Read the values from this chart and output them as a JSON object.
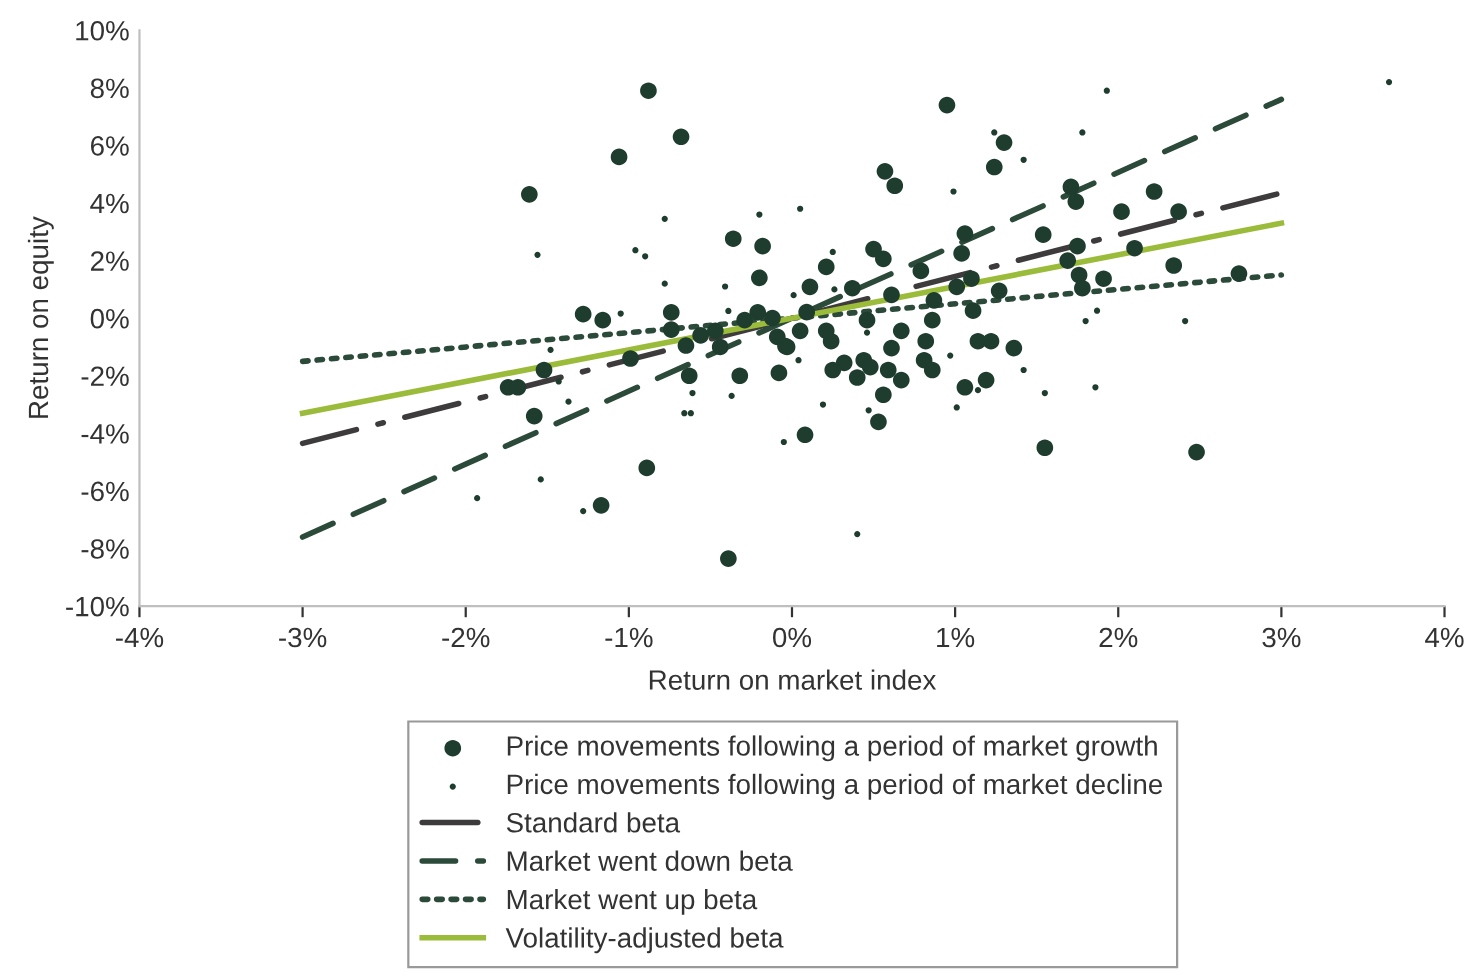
{
  "chart_data": {
    "type": "scatter",
    "xlabel": "Return on market index",
    "ylabel": "Return on equity",
    "xlim": [
      -4,
      4
    ],
    "ylim": [
      -10,
      10
    ],
    "xticks": [
      {
        "value": -4,
        "label": "-4%"
      },
      {
        "value": -3,
        "label": "-3%"
      },
      {
        "value": -2,
        "label": "-2%"
      },
      {
        "value": -1,
        "label": "-1%"
      },
      {
        "value": 0,
        "label": "0%"
      },
      {
        "value": 1,
        "label": "1%"
      },
      {
        "value": 2,
        "label": "2%"
      },
      {
        "value": 3,
        "label": "3%"
      },
      {
        "value": 4,
        "label": "4%"
      }
    ],
    "yticks": [
      {
        "value": -10,
        "label": "-10%"
      },
      {
        "value": -8,
        "label": "-8%"
      },
      {
        "value": -6,
        "label": "-6%"
      },
      {
        "value": -4,
        "label": "-4%"
      },
      {
        "value": -2,
        "label": "-2%"
      },
      {
        "value": 0,
        "label": "0%"
      },
      {
        "value": 2,
        "label": "2%"
      },
      {
        "value": 4,
        "label": "4%"
      },
      {
        "value": 6,
        "label": "6%"
      },
      {
        "value": 8,
        "label": "8%"
      },
      {
        "value": 10,
        "label": "10%"
      }
    ],
    "grid": false,
    "legend": "bottom",
    "series": [
      {
        "name": "Price movements following a period of market growth",
        "marker": "circle",
        "color": "#1e3d2e",
        "x": [
          -0.88,
          -0.68,
          -1.06,
          -1.61,
          -0.36,
          -0.18,
          -0.2,
          -1.28,
          -1.16,
          -0.74,
          -0.74,
          -0.21,
          -0.12,
          -0.47,
          -0.56,
          -0.44,
          -0.29,
          -0.09,
          -0.04,
          -0.08,
          -0.32,
          -0.63,
          -0.65,
          -0.99,
          -1.52,
          -1.74,
          -1.68,
          -1.58,
          -0.89,
          -1.17,
          -0.39,
          0.95,
          1.3,
          1.24,
          0.57,
          0.63,
          1.71,
          1.74,
          2.22,
          2.02,
          2.37,
          1.54,
          1.06,
          1.04,
          1.75,
          2.1,
          0.5,
          0.56,
          0.21,
          0.79,
          1.69,
          1.76,
          1.91,
          1.78,
          2.34,
          2.74,
          1.1,
          0.11,
          0.37,
          0.61,
          0.87,
          1.01,
          1.27,
          1.11,
          0.09,
          0.46,
          0.86,
          0.05,
          0.21,
          0.24,
          0.67,
          0.82,
          -0.03,
          0.61,
          1.14,
          1.22,
          1.36,
          0.32,
          0.25,
          0.44,
          0.48,
          0.4,
          0.59,
          0.67,
          0.81,
          0.86,
          0.56,
          0.53,
          1.06,
          1.19,
          0.08,
          1.55,
          2.48
        ],
        "values": [
          7.9,
          6.3,
          5.6,
          4.3,
          2.76,
          2.5,
          1.4,
          0.14,
          -0.07,
          0.2,
          -0.4,
          0.2,
          0,
          -0.44,
          -0.6,
          -1.0,
          -0.07,
          -0.65,
          -0.97,
          -1.9,
          -2.0,
          -2.0,
          -0.95,
          -1.4,
          -1.8,
          -2.4,
          -2.4,
          -3.4,
          -5.2,
          -6.5,
          -8.35,
          7.4,
          6.1,
          5.25,
          5.1,
          4.6,
          4.56,
          4.05,
          4.4,
          3.7,
          3.7,
          2.9,
          2.94,
          2.25,
          2.5,
          2.43,
          2.4,
          2.06,
          1.78,
          1.64,
          2.0,
          1.5,
          1.37,
          1.04,
          1.83,
          1.55,
          1.37,
          1.09,
          1.04,
          0.81,
          0.62,
          1.09,
          0.95,
          0.26,
          0.21,
          -0.07,
          -0.07,
          -0.44,
          -0.44,
          -0.8,
          -0.44,
          -0.8,
          -1.0,
          -1.04,
          -0.8,
          -0.8,
          -1.04,
          -1.55,
          -1.8,
          -1.46,
          -1.7,
          -2.06,
          -1.8,
          -2.15,
          -1.46,
          -1.8,
          -2.66,
          -3.6,
          -2.4,
          -2.15,
          -4.05,
          -4.5,
          -4.65
        ]
      },
      {
        "name": "Price movements following a period of market decline",
        "marker": "circle",
        "color": "#1e3d2e",
        "x": [
          -0.78,
          -1.56,
          -0.96,
          -0.9,
          -0.2,
          -0.78,
          -0.41,
          0.01,
          -0.39,
          -1.05,
          -1.48,
          -1.43,
          -1.37,
          -0.61,
          -0.66,
          -0.62,
          -0.37,
          -1.54,
          -1.93,
          -1.28,
          -0.05,
          3.66,
          1.93,
          1.24,
          1.78,
          1.42,
          0.99,
          0.05,
          0.25,
          0.26,
          1.87,
          1.8,
          0.04,
          0.97,
          1.42,
          1.55,
          1.86,
          2.41,
          0.19,
          0.47,
          1.01,
          1.14,
          0.4,
          0.46
        ],
        "values": [
          3.45,
          2.2,
          2.36,
          2.15,
          3.6,
          1.2,
          1.1,
          0.8,
          0.25,
          0.16,
          -1.1,
          -2.2,
          -2.9,
          -2.6,
          -3.3,
          -3.3,
          -2.7,
          -5.6,
          -6.25,
          -6.7,
          -4.3,
          8.2,
          7.9,
          6.45,
          6.45,
          5.5,
          4.4,
          3.8,
          2.3,
          1.0,
          0.26,
          -0.1,
          -1.46,
          -1.3,
          -1.8,
          -2.6,
          -2.4,
          -0.1,
          -3.0,
          -3.2,
          -3.1,
          -2.5,
          -7.5,
          -0.5
        ]
      },
      {
        "name": "Standard beta",
        "type": "line",
        "line_style": "dashdot",
        "color": "#3d3b3b",
        "x": [
          -3,
          3
        ],
        "values": [
          -4.35,
          4.35
        ]
      },
      {
        "name": "Market went down beta",
        "type": "line",
        "line_style": "dashed",
        "color": "#2b4a3a",
        "x": [
          -3,
          3
        ],
        "values": [
          -7.6,
          7.6
        ]
      },
      {
        "name": "Market went up beta",
        "type": "line",
        "line_style": "dotted",
        "color": "#2b4a3a",
        "x": [
          -3,
          3
        ],
        "values": [
          -1.5,
          1.5
        ]
      },
      {
        "name": "Volatility-adjusted beta",
        "type": "line",
        "line_style": "solid",
        "color": "#9bbb3b",
        "x": [
          -3,
          3
        ],
        "values": [
          -3.3,
          3.3
        ]
      }
    ]
  }
}
